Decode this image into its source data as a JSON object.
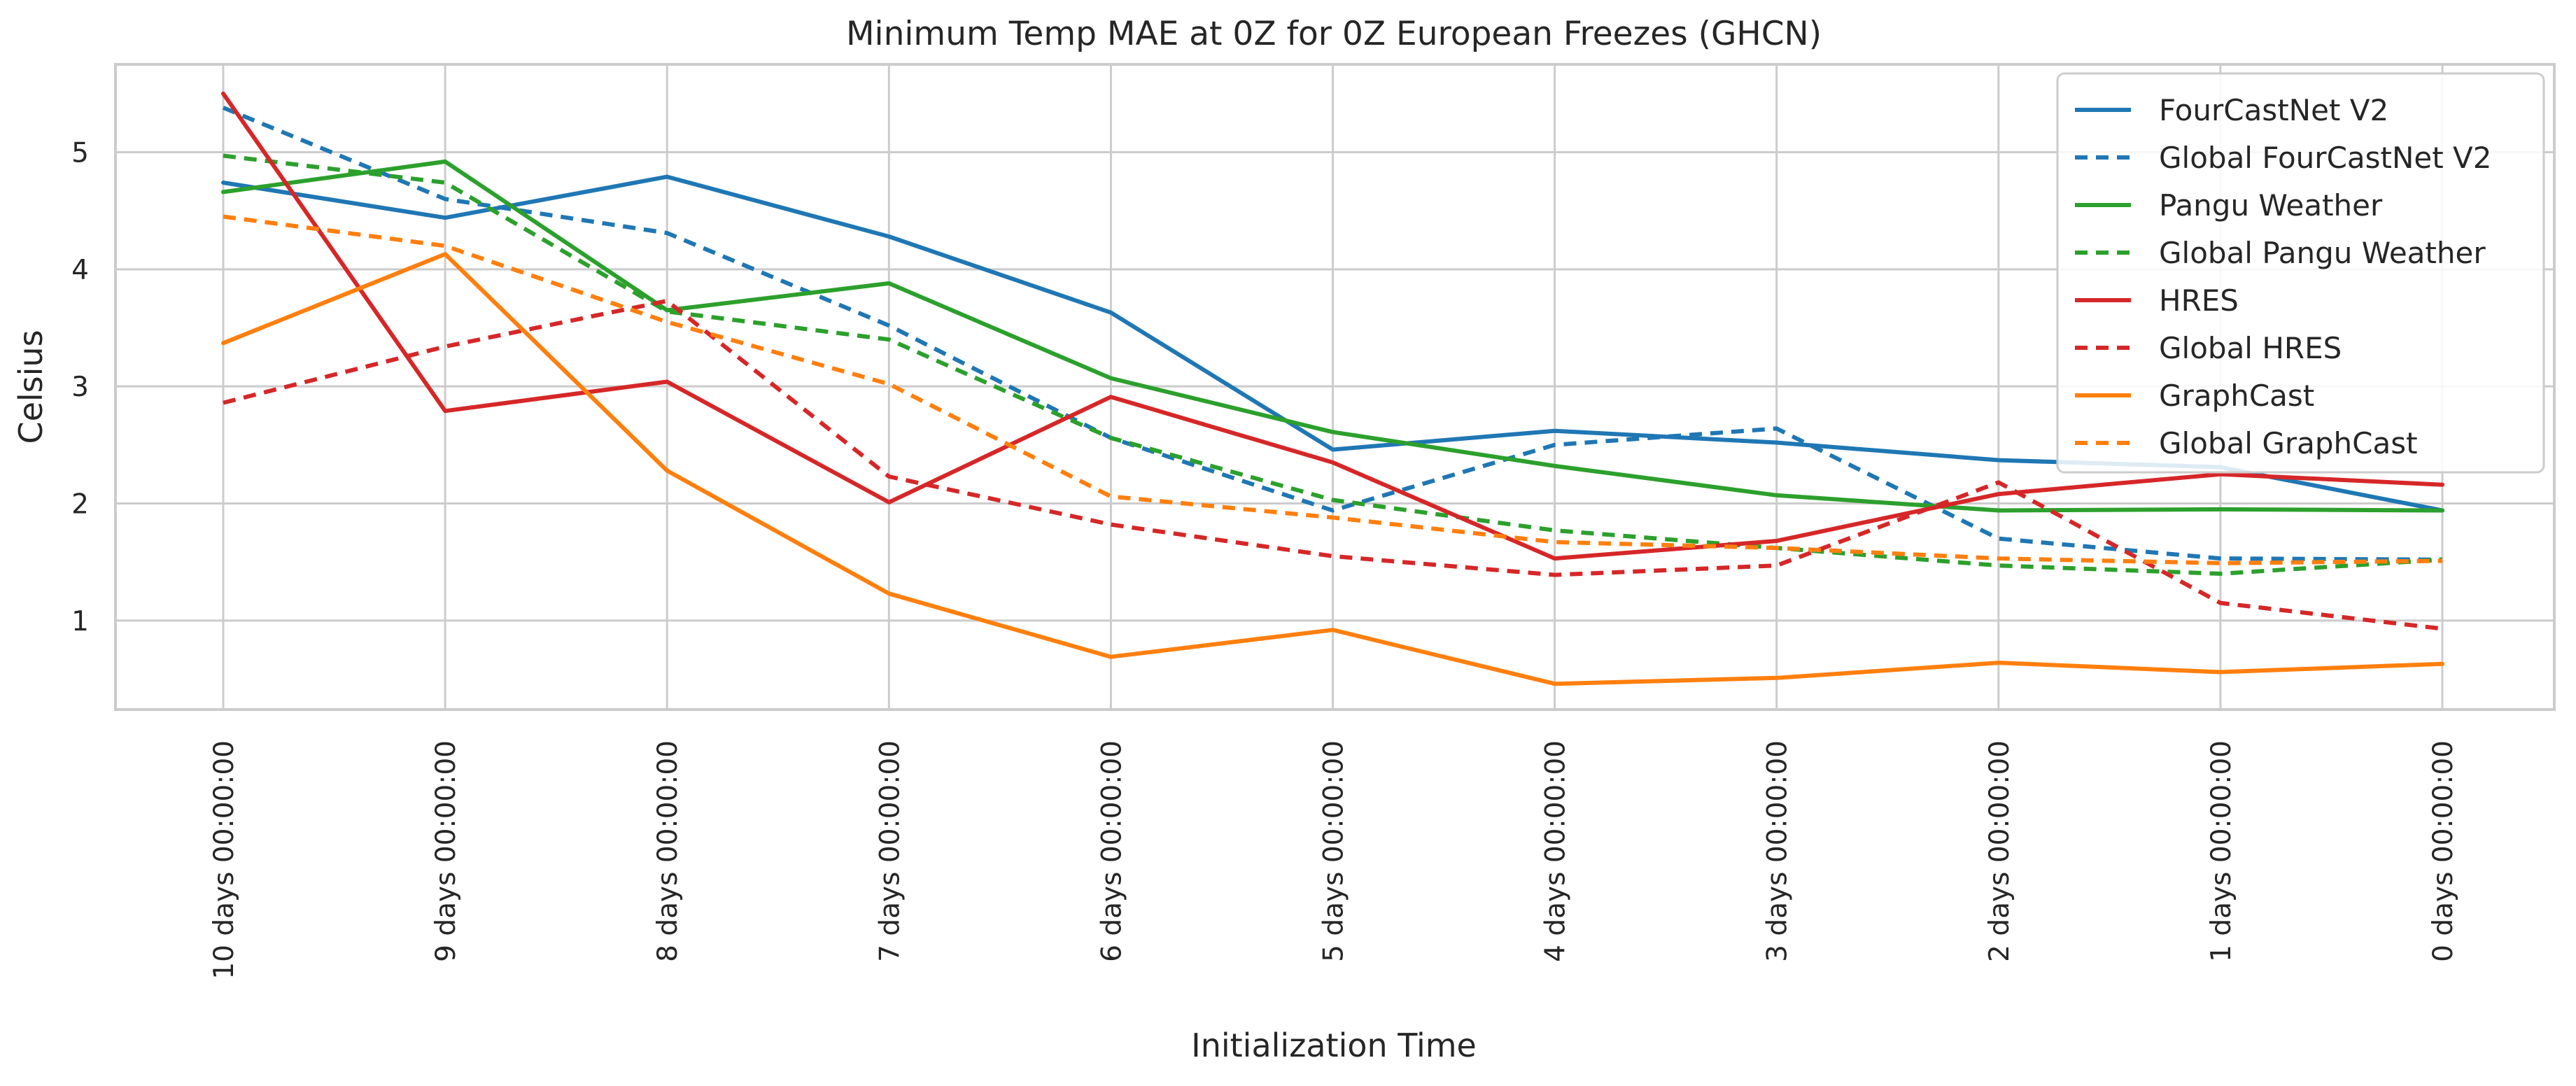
{
  "chart_data": {
    "type": "line",
    "title": "Minimum Temp MAE at 0Z for 0Z European Freezes (GHCN)",
    "xlabel": "Initialization Time",
    "ylabel": "Celsius",
    "categories": [
      "10 days 00:00:00",
      "9 days 00:00:00",
      "8 days 00:00:00",
      "7 days 00:00:00",
      "6 days 00:00:00",
      "5 days 00:00:00",
      "4 days 00:00:00",
      "3 days 00:00:00",
      "2 days 00:00:00",
      "1 days 00:00:00",
      "0 days 00:00:00"
    ],
    "ylim": [
      0.24,
      5.75
    ],
    "yticks": [
      1,
      2,
      3,
      4,
      5
    ],
    "grid": true,
    "legend_position": "top-right",
    "series": [
      {
        "name": "FourCastNet V2",
        "color": "#1f77b4",
        "dash": "solid",
        "values": [
          4.74,
          4.44,
          4.79,
          4.28,
          3.63,
          2.46,
          2.62,
          2.52,
          2.37,
          2.31,
          1.94
        ]
      },
      {
        "name": "Global FourCastNet V2",
        "color": "#1f77b4",
        "dash": "dashed",
        "values": [
          5.38,
          4.6,
          4.31,
          3.52,
          2.56,
          1.94,
          2.5,
          2.64,
          1.7,
          1.53,
          1.52
        ]
      },
      {
        "name": "Pangu Weather",
        "color": "#2ca02c",
        "dash": "solid",
        "values": [
          4.66,
          4.92,
          3.65,
          3.88,
          3.07,
          2.61,
          2.32,
          2.07,
          1.94,
          1.95,
          1.94
        ]
      },
      {
        "name": "Global Pangu Weather",
        "color": "#2ca02c",
        "dash": "dashed",
        "values": [
          4.97,
          4.74,
          3.64,
          3.4,
          2.56,
          2.03,
          1.77,
          1.62,
          1.47,
          1.4,
          1.52
        ]
      },
      {
        "name": "HRES",
        "color": "#d62728",
        "dash": "solid",
        "values": [
          5.5,
          2.79,
          3.04,
          2.01,
          2.91,
          2.35,
          1.53,
          1.68,
          2.08,
          2.25,
          2.16
        ]
      },
      {
        "name": "Global HRES",
        "color": "#d62728",
        "dash": "dashed",
        "values": [
          2.86,
          3.34,
          3.73,
          2.23,
          1.82,
          1.55,
          1.39,
          1.47,
          2.18,
          1.15,
          0.93
        ]
      },
      {
        "name": "GraphCast",
        "color": "#ff7f0e",
        "dash": "solid",
        "values": [
          3.37,
          4.13,
          2.28,
          1.23,
          0.69,
          0.92,
          0.46,
          0.51,
          0.64,
          0.56,
          0.63
        ]
      },
      {
        "name": "Global GraphCast",
        "color": "#ff7f0e",
        "dash": "dashed",
        "values": [
          4.45,
          4.2,
          3.55,
          3.02,
          2.06,
          1.88,
          1.67,
          1.62,
          1.53,
          1.49,
          1.51
        ]
      }
    ]
  }
}
